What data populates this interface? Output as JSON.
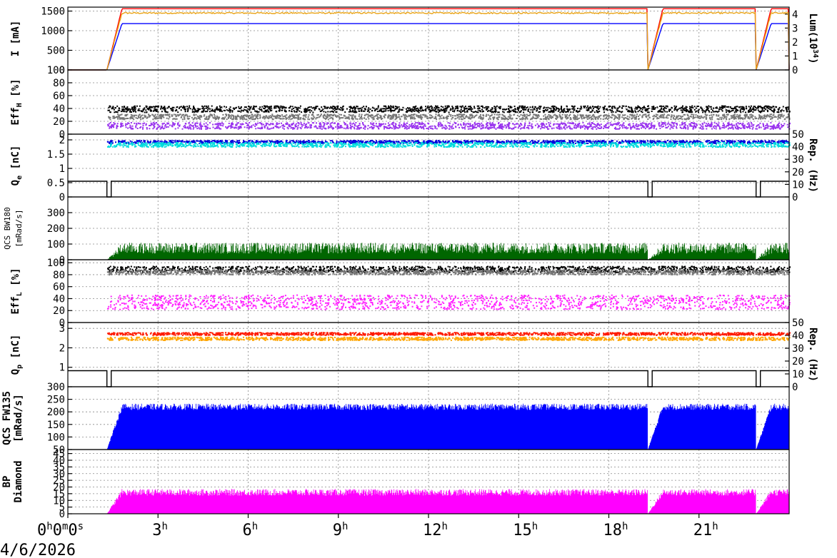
{
  "chart_data": {
    "type": "line",
    "date": "4/6/2026",
    "x": {
      "unit": "hours",
      "range": [
        0,
        24
      ],
      "ticks": [
        {
          "value": 0,
          "label": "0",
          "sup": "h",
          "label2": "0",
          "sup2": "m",
          "label3": "0",
          "sup3": "s"
        },
        {
          "value": 3,
          "label": "3",
          "sup": "h"
        },
        {
          "value": 6,
          "label": "6",
          "sup": "h"
        },
        {
          "value": 9,
          "label": "9",
          "sup": "h"
        },
        {
          "value": 12,
          "label": "12",
          "sup": "h"
        },
        {
          "value": 15,
          "label": "15",
          "sup": "h"
        },
        {
          "value": 18,
          "label": "18",
          "sup": "h"
        },
        {
          "value": 21,
          "label": "21",
          "sup": "h"
        }
      ],
      "beam_windows": [
        [
          1.3,
          19.3
        ],
        [
          19.3,
          22.9
        ],
        [
          22.9,
          24
        ]
      ]
    },
    "panels": [
      {
        "id": "current",
        "ylabel": "I [mA]",
        "ylim": [
          0,
          1600
        ],
        "yticks": [
          "0",
          "500",
          "1000",
          "1500"
        ],
        "yticks_values": [
          0,
          500,
          1000,
          1500
        ],
        "ylabel_right": "Lum(10^34)",
        "ylabel_right_parts": [
          "Lum(10",
          "34",
          ")"
        ],
        "ylim_right": [
          0,
          4.5
        ],
        "yticks_right": [
          "0",
          "1",
          "2",
          "3",
          "4"
        ],
        "yticks_right_values": [
          0,
          1,
          2,
          3,
          4
        ],
        "series": [
          {
            "color": "#ff0000",
            "kind": "line",
            "flat": 1560,
            "ramp_to": 1560
          },
          {
            "color": "#0000ff",
            "kind": "line",
            "flat": 1180,
            "ramp_to": 1180
          },
          {
            "color": "#e8a317",
            "kind": "line",
            "flat": 1450,
            "ramp_to": 1450,
            "noise": 35
          }
        ]
      },
      {
        "id": "effh",
        "ylabel": "Eff_H [%]",
        "ylabel_base": "Eff",
        "ylabel_sub": "H",
        "ylabel_tail": " [%]",
        "ylim": [
          0,
          100
        ],
        "yticks": [
          "0",
          "20",
          "40",
          "60",
          "80",
          "100"
        ],
        "yticks_values": [
          0,
          20,
          40,
          60,
          80,
          100
        ],
        "series": [
          {
            "color": "#000000",
            "kind": "dots",
            "level": 40,
            "spread": 5
          },
          {
            "color": "#777777",
            "kind": "dots",
            "level": 28,
            "spread": 4
          },
          {
            "color": "#9933ee",
            "kind": "dots",
            "level": 14,
            "spread": 5
          }
        ]
      },
      {
        "id": "qe",
        "ylabel": "Q_e [nC]",
        "ylabel_base": "Q",
        "ylabel_sub": "e",
        "ylabel_tail": " [nC]",
        "ylim": [
          0,
          2.2
        ],
        "yticks": [
          "0",
          "0.5",
          "1",
          "1.5",
          "2"
        ],
        "yticks_values": [
          0,
          0.5,
          1,
          1.5,
          2
        ],
        "ylabel_right": "Rep. (Hz)",
        "ylim_right": [
          0,
          50
        ],
        "yticks_right": [
          "0",
          "10",
          "20",
          "30",
          "40",
          "50"
        ],
        "yticks_right_values": [
          0,
          10,
          20,
          30,
          40,
          50
        ],
        "series": [
          {
            "color": "#0000dd",
            "kind": "dots",
            "level": 1.95,
            "spread": 0.05
          },
          {
            "color": "#00dddd",
            "kind": "dots",
            "level": 1.85,
            "spread": 0.08
          },
          {
            "color": "#000000",
            "kind": "step",
            "rep_hz": 12.5
          }
        ]
      },
      {
        "id": "bw180",
        "ylabel": "QCS BW180 [mRad/s]",
        "ylabel_line1": "QCS BW180",
        "ylabel_line2": "[mRad/s]",
        "ylim": [
          0,
          400
        ],
        "yticks": [
          "0",
          "100",
          "200",
          "300"
        ],
        "yticks_values": [
          0,
          100,
          200,
          300
        ],
        "series": [
          {
            "color": "#006600",
            "kind": "spikes",
            "level": 60,
            "spread": 70
          }
        ]
      },
      {
        "id": "effl",
        "ylabel": "Eff_L [%]",
        "ylabel_base": "Eff",
        "ylabel_sub": "L",
        "ylabel_tail": " [%]",
        "ylim": [
          0,
          105
        ],
        "yticks": [
          "0",
          "20",
          "40",
          "60",
          "80",
          "100"
        ],
        "yticks_values": [
          0,
          20,
          40,
          60,
          80,
          100
        ],
        "series": [
          {
            "color": "#000000",
            "kind": "dots",
            "level": 90,
            "spread": 5
          },
          {
            "color": "#777777",
            "kind": "dots",
            "level": 85,
            "spread": 4
          },
          {
            "color": "#ff22ff",
            "kind": "dots",
            "level": 35,
            "spread": 12
          }
        ]
      },
      {
        "id": "qp",
        "ylabel": "Q_p [nC]",
        "ylabel_base": "Q",
        "ylabel_sub": "p",
        "ylabel_tail": " [nC]",
        "ylim": [
          0,
          3.3
        ],
        "yticks": [
          "1",
          "2",
          "3"
        ],
        "yticks_values": [
          1,
          2,
          3
        ],
        "ylabel_right": "Rep. (Hz)",
        "ylim_right": [
          0,
          50
        ],
        "yticks_right": [
          "0",
          "10",
          "20",
          "30",
          "40",
          "50"
        ],
        "yticks_right_values": [
          0,
          10,
          20,
          30,
          40,
          50
        ],
        "series": [
          {
            "color": "#ff1a00",
            "kind": "dots",
            "level": 2.75,
            "spread": 0.07
          },
          {
            "color": "#ffa500",
            "kind": "dots",
            "level": 2.5,
            "spread": 0.08
          },
          {
            "color": "#000000",
            "kind": "step",
            "rep_hz": 12.5
          }
        ]
      },
      {
        "id": "fw135",
        "ylabel": "QCS FW135 [mRad/s]",
        "ylabel_line1": "QCS FW135",
        "ylabel_line2": "[mRad/s]",
        "ylim": [
          50,
          300
        ],
        "yticks": [
          "50",
          "100",
          "150",
          "200",
          "250",
          "300"
        ],
        "yticks_values": [
          50,
          100,
          150,
          200,
          250,
          300
        ],
        "series": [
          {
            "color": "#0000ff",
            "kind": "spikes",
            "level": 215,
            "spread": 25
          }
        ]
      },
      {
        "id": "bp",
        "ylabel": "BP Diamond",
        "ylabel_line1": "BP",
        "ylabel_line2": "Diamond",
        "ylim": [
          0,
          48
        ],
        "yticks": [
          "0",
          "5",
          "10",
          "15",
          "20",
          "25",
          "30",
          "35",
          "40",
          "45"
        ],
        "yticks_values": [
          0,
          5,
          10,
          15,
          20,
          25,
          30,
          35,
          40,
          45
        ],
        "series": [
          {
            "color": "#ff00ff",
            "kind": "spikes",
            "level": 15,
            "spread": 5
          }
        ]
      }
    ]
  }
}
